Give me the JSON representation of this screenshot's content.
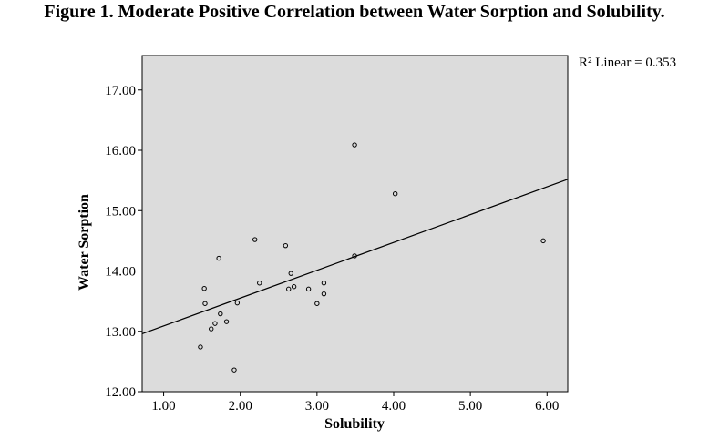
{
  "title": "Figure 1. Moderate Positive Correlation between Water Sorption and Solubility.",
  "chart_data": {
    "type": "scatter",
    "xlabel": "Solubility",
    "ylabel": "Water Sorption",
    "xlim": [
      0.72,
      6.27
    ],
    "ylim": [
      12.0,
      17.57
    ],
    "x_ticks": [
      1.0,
      2.0,
      3.0,
      4.0,
      5.0,
      6.0
    ],
    "x_tick_labels": [
      "1.00",
      "2.00",
      "3.00",
      "4.00",
      "5.00",
      "6.00"
    ],
    "y_ticks": [
      12.0,
      13.0,
      14.0,
      15.0,
      16.0,
      17.0
    ],
    "y_tick_labels": [
      "12.00",
      "13.00",
      "14.00",
      "15.00",
      "16.00",
      "17.00"
    ],
    "points": [
      {
        "x": 1.48,
        "y": 12.74
      },
      {
        "x": 1.53,
        "y": 13.71
      },
      {
        "x": 1.54,
        "y": 13.46
      },
      {
        "x": 1.62,
        "y": 13.04
      },
      {
        "x": 1.67,
        "y": 13.13
      },
      {
        "x": 1.72,
        "y": 14.21
      },
      {
        "x": 1.74,
        "y": 13.29
      },
      {
        "x": 1.82,
        "y": 13.16
      },
      {
        "x": 1.92,
        "y": 12.36
      },
      {
        "x": 1.96,
        "y": 13.47
      },
      {
        "x": 2.19,
        "y": 14.52
      },
      {
        "x": 2.25,
        "y": 13.8
      },
      {
        "x": 2.59,
        "y": 14.42
      },
      {
        "x": 2.63,
        "y": 13.7
      },
      {
        "x": 2.66,
        "y": 13.96
      },
      {
        "x": 2.7,
        "y": 13.74
      },
      {
        "x": 2.89,
        "y": 13.7
      },
      {
        "x": 3.0,
        "y": 13.46
      },
      {
        "x": 3.09,
        "y": 13.8
      },
      {
        "x": 3.09,
        "y": 13.62
      },
      {
        "x": 3.49,
        "y": 16.09
      },
      {
        "x": 3.49,
        "y": 14.25
      },
      {
        "x": 4.02,
        "y": 15.28
      },
      {
        "x": 5.95,
        "y": 14.5
      }
    ],
    "fit_line": {
      "type": "linear",
      "x": [
        0.72,
        6.27
      ],
      "y": [
        12.96,
        15.52
      ]
    },
    "annotation": "R² Linear = 0.353",
    "grid": false,
    "background": "#dcdcdc"
  }
}
